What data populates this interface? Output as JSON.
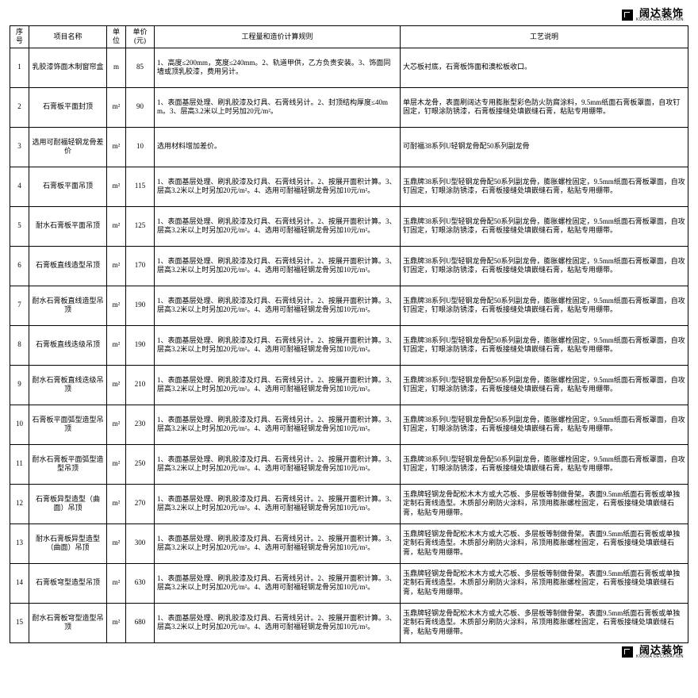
{
  "logo": {
    "cn": "阔达装饰",
    "en": "KUODA DECORATION"
  },
  "headers": {
    "seq": "序号",
    "name": "项目名称",
    "unit": "单位",
    "price": "单价(元)",
    "rule": "工程量和造价计算规则",
    "proc": "工艺说明"
  },
  "rows": [
    {
      "seq": "1",
      "name": "乳胶漆饰面木制窗帘盒",
      "unit": "m",
      "price": "85",
      "rule": "1、高度≤200mm，宽度≤240mm。2、轨道甲供，乙方负责安装。3、饰面同墙或顶乳胶漆，费用另计。",
      "proc": "大芯板衬底，石膏板饰面和澳松板收口。"
    },
    {
      "seq": "2",
      "name": "石膏板平面封顶",
      "unit": "m²",
      "price": "90",
      "rule": "1、表面基层处理、刷乳胶漆及灯具、石膏线另计。2、封顶结构厚度≤40mm。3、层高3.2米以上时另加20元/m²。",
      "proc": "单层木龙骨，表面刷阔达专用膨胀型彩色防火防腐涂料，9.5mm纸面石膏板罩面，自攻钉固定，钉眼涂防锈漆，石膏板接缝处填嵌缝石膏，粘贴专用绷带。"
    },
    {
      "seq": "3",
      "name": "选用可耐福轻钢龙骨差价",
      "unit": "m²",
      "price": "10",
      "rule": "选用材料增加差价。",
      "proc": "可耐福38系列U轻钢龙骨配50系列副龙骨"
    },
    {
      "seq": "4",
      "name": "石膏板平面吊顶",
      "unit": "m²",
      "price": "115",
      "rule": "1、表面基层处理、刷乳胶漆及灯具、石膏线另计。2、按展开面积计算。3、层高3.2米以上时另加20元/m²。4、选用可耐福轻钢龙骨另加10元/m²。",
      "proc": "玉鼎牌38系列U型轻钢龙骨配50系列副龙骨，膨胀螺栓固定，9.5mm纸面石膏板罩面，自攻钉固定，钉眼涂防锈漆，石膏板接缝处填嵌缝石膏，粘贴专用绷带。"
    },
    {
      "seq": "5",
      "name": "耐水石膏板平面吊顶",
      "unit": "m²",
      "price": "125",
      "rule": "1、表面基层处理、刷乳胶漆及灯具、石膏线另计。2、按展开面积计算。3、层高3.2米以上时另加20元/m²。4、选用可耐福轻钢龙骨另加10元/m²。",
      "proc": "玉鼎牌38系列U型轻钢龙骨配50系列副龙骨，膨胀螺栓固定，9.5mm纸面石膏板罩面，自攻钉固定，钉眼涂防锈漆，石膏板接缝处填嵌缝石膏，粘贴专用绷带。"
    },
    {
      "seq": "6",
      "name": "石膏板直线造型吊顶",
      "unit": "m²",
      "price": "170",
      "rule": "1、表面基层处理、刷乳胶漆及灯具、石膏线另计。2、按展开面积计算。3、层高3.2米以上时另加20元/m²。4、选用可耐福轻钢龙骨另加10元/m²。",
      "proc": "玉鼎牌38系列U型轻钢龙骨配50系列副龙骨，膨胀螺栓固定，9.5mm纸面石膏板罩面，自攻钉固定，钉眼涂防锈漆，石膏板接缝处填嵌缝石膏，粘贴专用绷带。"
    },
    {
      "seq": "7",
      "name": "耐水石膏板直线造型吊顶",
      "unit": "m²",
      "price": "190",
      "rule": "1、表面基层处理、刷乳胶漆及灯具、石膏线另计。2、按展开面积计算。3、层高3.2米以上时另加20元/m²。4、选用可耐福轻钢龙骨另加10元/m²。",
      "proc": "玉鼎牌38系列U型轻钢龙骨配50系列副龙骨，膨胀螺栓固定，9.5mm纸面石膏板罩面，自攻钉固定，钉眼涂防锈漆，石膏板接缝处填嵌缝石膏，粘贴专用绷带。"
    },
    {
      "seq": "8",
      "name": "石膏板直线迭级吊顶",
      "unit": "m²",
      "price": "190",
      "rule": "1、表面基层处理、刷乳胶漆及灯具、石膏线另计。2、按展开面积计算。3、层高3.2米以上时另加20元/m²。4、选用可耐福轻钢龙骨另加10元/m²。",
      "proc": "玉鼎牌38系列U型轻钢龙骨配50系列副龙骨，膨胀螺栓固定，9.5mm纸面石膏板罩面，自攻钉固定，钉眼涂防锈漆，石膏板接缝处填嵌缝石膏，粘贴专用绷带。"
    },
    {
      "seq": "9",
      "name": "耐水石膏板直线迭级吊顶",
      "unit": "m²",
      "price": "210",
      "rule": "1、表面基层处理、刷乳胶漆及灯具、石膏线另计。2、按展开面积计算。3、层高3.2米以上时另加20元/m²。4、选用可耐福轻钢龙骨另加10元/m²。",
      "proc": "玉鼎牌38系列U型轻钢龙骨配50系列副龙骨，膨胀螺栓固定，9.5mm纸面石膏板罩面，自攻钉固定，钉眼涂防锈漆，石膏板接缝处填嵌缝石膏，粘贴专用绷带。"
    },
    {
      "seq": "10",
      "name": "石膏板平面弧型造型吊顶",
      "unit": "m²",
      "price": "230",
      "rule": "1、表面基层处理、刷乳胶漆及灯具、石膏线另计。2、按展开面积计算。3、层高3.2米以上时另加20元/m²。4、选用可耐福轻钢龙骨另加10元/m²。",
      "proc": "玉鼎牌38系列U型轻钢龙骨配50系列副龙骨，膨胀螺栓固定，9.5mm纸面石膏板罩面，自攻钉固定，钉眼涂防锈漆，石膏板接缝处填嵌缝石膏，粘贴专用绷带。"
    },
    {
      "seq": "11",
      "name": "耐水石膏板平面弧型造型吊顶",
      "unit": "m²",
      "price": "250",
      "rule": "1、表面基层处理、刷乳胶漆及灯具、石膏线另计。2、按展开面积计算。3、层高3.2米以上时另加20元/m²。4、选用可耐福轻钢龙骨另加10元/m²。",
      "proc": "玉鼎牌38系列U型轻钢龙骨配50系列副龙骨，膨胀螺栓固定，9.5mm纸面石膏板罩面，自攻钉固定，钉眼涂防锈漆，石膏板接缝处填嵌缝石膏，粘贴专用绷带。"
    },
    {
      "seq": "12",
      "name": "石膏板异型造型（曲面）吊顶",
      "unit": "m²",
      "price": "270",
      "rule": "1、表面基层处理、刷乳胶漆及灯具、石膏线另计。2、按展开面积计算。3、层高3.2米以上时另加20元/m²。4、选用可耐福轻钢龙骨另加10元/m²。",
      "proc": "玉鼎牌轻钢龙骨配松木木方或大芯板、多层板等制做骨架。表面9.5mm纸面石膏板或单独定制石膏线造型。木质部分刷防火涂料，吊顶用膨胀螺栓固定，石膏板接缝处填嵌缝石膏，粘贴专用绷带。"
    },
    {
      "seq": "13",
      "name": "耐水石膏板异型造型（曲面）吊顶",
      "unit": "m²",
      "price": "300",
      "rule": "1、表面基层处理、刷乳胶漆及灯具、石膏线另计。2、按展开面积计算。3、层高3.2米以上时另加20元/m²。4、选用可耐福轻钢龙骨另加10元/m²。",
      "proc": "玉鼎牌轻钢龙骨配松木木方或大芯板、多层板等制做骨架。表面9.5mm纸面石膏板或单独定制石膏线造型。木质部分刷防火涂料，吊顶用膨胀螺栓固定，石膏板接缝处填嵌缝石膏，粘贴专用绷带。"
    },
    {
      "seq": "14",
      "name": "石膏板穹型造型吊顶",
      "unit": "m²",
      "price": "630",
      "rule": "1、表面基层处理、刷乳胶漆及灯具、石膏线另计。2、按展开面积计算。3、层高3.2米以上时另加20元/m²。4、选用可耐福轻钢龙骨另加10元/m²。",
      "proc": "玉鼎牌轻钢龙骨配松木木方或大芯板、多层板等制做骨架。表面9.5mm纸面石膏板或单独定制石膏线造型。木质部分刷防火涂料，吊顶用膨胀螺栓固定，石膏板接缝处填嵌缝石膏，粘贴专用绷带。"
    },
    {
      "seq": "15",
      "name": "耐水石膏板穹型造型吊顶",
      "unit": "m²",
      "price": "680",
      "rule": "1、表面基层处理、刷乳胶漆及灯具、石膏线另计。2、按展开面积计算。3、层高3.2米以上时另加20元/m²。4、选用可耐福轻钢龙骨另加10元/m²。",
      "proc": "玉鼎牌轻钢龙骨配松木木方或大芯板、多层板等制做骨架。表面9.5mm纸面石膏板或单独定制石膏线造型。木质部分刷防火涂料，吊顶用膨胀螺栓固定，石膏板接缝处填嵌缝石膏，粘贴专用绷带。"
    }
  ]
}
